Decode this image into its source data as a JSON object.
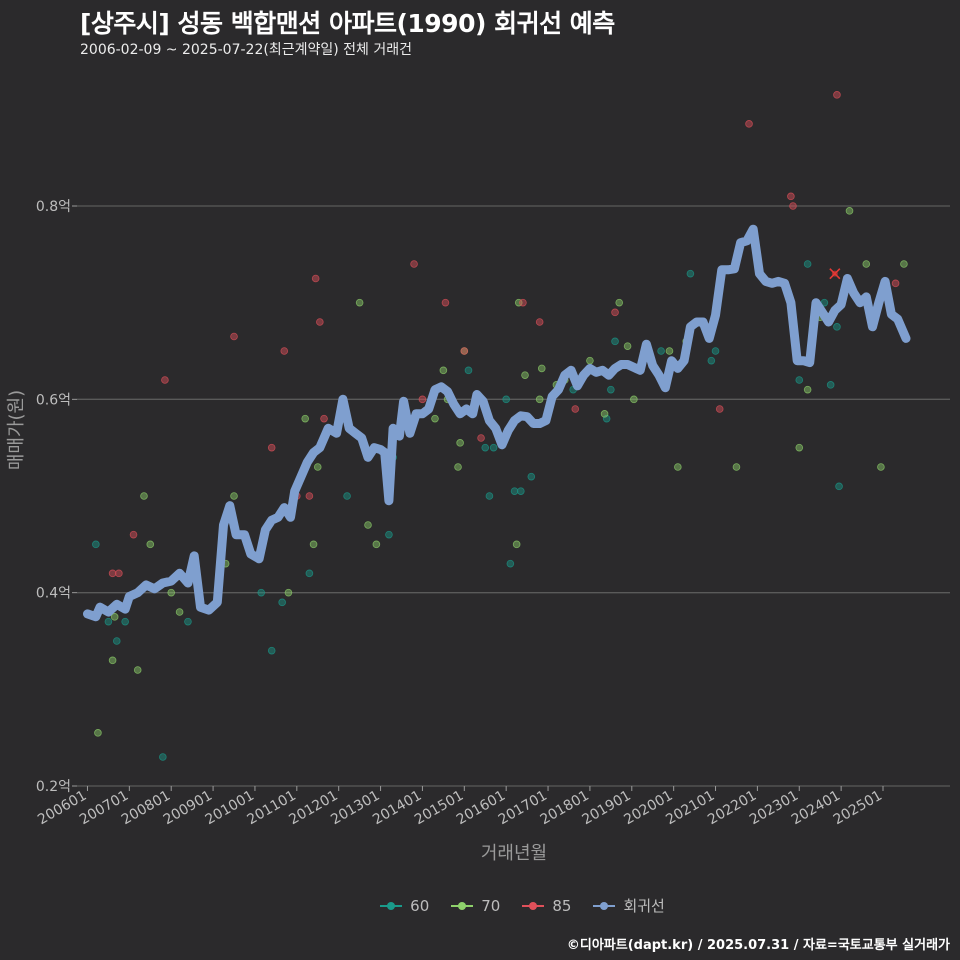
{
  "header": {
    "title": "[상주시] 성동 백합맨션 아파트(1990) 회귀선 예측",
    "subtitle": "2006-02-09 ~ 2025-07-22(최근계약일) 전체 거래건"
  },
  "footer": {
    "text": "©디아파트(dapt.kr) / 2025.07.31 / 자료=국토교통부 실거래가"
  },
  "colors": {
    "background": "#2b2a2c",
    "grid": "#5a5a5a",
    "series60": "#1a9a8a",
    "series70": "#8ed16b",
    "series85": "#e0505a",
    "regression": "#7f9fcf",
    "marker": "#e53935"
  },
  "chart_data": {
    "type": "scatter",
    "title": "[상주시] 성동 백합맨션 아파트(1990) 회귀선 예측",
    "xlabel": "거래년월",
    "ylabel": "매매가(원)",
    "x_unit": "years",
    "xlim": [
      2005.75,
      2026.6
    ],
    "ylim": [
      0.2,
      0.92
    ],
    "yticks": [
      0.2,
      0.4,
      0.6,
      0.8
    ],
    "ytick_labels": [
      "0.2억",
      "0.4억",
      "0.6억",
      "0.8억"
    ],
    "xticks": [
      2006,
      2007,
      2008,
      2009,
      2010,
      2011,
      2012,
      2013,
      2014,
      2015,
      2016,
      2017,
      2018,
      2019,
      2020,
      2021,
      2022,
      2023,
      2024,
      2025
    ],
    "xtick_labels": [
      "200601",
      "200701",
      "200801",
      "200901",
      "201001",
      "201101",
      "201201",
      "201301",
      "201401",
      "201501",
      "201601",
      "201701",
      "201801",
      "201901",
      "202001",
      "202101",
      "202201",
      "202301",
      "202401",
      "202501"
    ],
    "legend": [
      {
        "name": "60",
        "key": "series60"
      },
      {
        "name": "70",
        "key": "series70"
      },
      {
        "name": "85",
        "key": "series85"
      },
      {
        "name": "회귀선",
        "key": "regression"
      }
    ],
    "series": [
      {
        "name": "60",
        "key": "series60",
        "points": [
          [
            2006.2,
            0.45
          ],
          [
            2006.5,
            0.37
          ],
          [
            2006.7,
            0.35
          ],
          [
            2006.9,
            0.37
          ],
          [
            2007.8,
            0.23
          ],
          [
            2008.4,
            0.37
          ],
          [
            2010.15,
            0.4
          ],
          [
            2010.4,
            0.34
          ],
          [
            2010.65,
            0.39
          ],
          [
            2011.3,
            0.42
          ],
          [
            2012.2,
            0.5
          ],
          [
            2013.2,
            0.46
          ],
          [
            2013.3,
            0.54
          ],
          [
            2015.1,
            0.63
          ],
          [
            2015.5,
            0.55
          ],
          [
            2015.6,
            0.5
          ],
          [
            2015.7,
            0.55
          ],
          [
            2016.0,
            0.6
          ],
          [
            2016.1,
            0.43
          ],
          [
            2016.2,
            0.505
          ],
          [
            2016.35,
            0.505
          ],
          [
            2016.6,
            0.52
          ],
          [
            2017.6,
            0.61
          ],
          [
            2018.4,
            0.58
          ],
          [
            2018.5,
            0.61
          ],
          [
            2018.6,
            0.66
          ],
          [
            2019.7,
            0.65
          ],
          [
            2020.4,
            0.73
          ],
          [
            2020.9,
            0.64
          ],
          [
            2021.0,
            0.65
          ],
          [
            2023.0,
            0.62
          ],
          [
            2023.2,
            0.74
          ],
          [
            2023.6,
            0.7
          ],
          [
            2023.75,
            0.615
          ],
          [
            2023.9,
            0.675
          ],
          [
            2023.95,
            0.51
          ]
        ]
      },
      {
        "name": "70",
        "key": "series70",
        "points": [
          [
            2006.25,
            0.255
          ],
          [
            2006.6,
            0.33
          ],
          [
            2006.65,
            0.375
          ],
          [
            2007.2,
            0.32
          ],
          [
            2007.35,
            0.5
          ],
          [
            2007.5,
            0.45
          ],
          [
            2008.0,
            0.4
          ],
          [
            2008.2,
            0.38
          ],
          [
            2009.3,
            0.43
          ],
          [
            2009.5,
            0.5
          ],
          [
            2010.8,
            0.4
          ],
          [
            2011.2,
            0.58
          ],
          [
            2011.4,
            0.45
          ],
          [
            2011.5,
            0.53
          ],
          [
            2012.2,
            0.58
          ],
          [
            2012.5,
            0.7
          ],
          [
            2012.7,
            0.47
          ],
          [
            2012.9,
            0.45
          ],
          [
            2014.3,
            0.58
          ],
          [
            2014.5,
            0.63
          ],
          [
            2014.6,
            0.6
          ],
          [
            2014.85,
            0.53
          ],
          [
            2014.9,
            0.555
          ],
          [
            2015.0,
            0.65
          ],
          [
            2016.25,
            0.45
          ],
          [
            2016.3,
            0.7
          ],
          [
            2016.45,
            0.625
          ],
          [
            2016.8,
            0.6
          ],
          [
            2016.85,
            0.632
          ],
          [
            2017.2,
            0.615
          ],
          [
            2017.4,
            0.62
          ],
          [
            2017.7,
            0.62
          ],
          [
            2018.0,
            0.64
          ],
          [
            2018.35,
            0.585
          ],
          [
            2018.7,
            0.7
          ],
          [
            2018.9,
            0.655
          ],
          [
            2019.05,
            0.6
          ],
          [
            2019.9,
            0.65
          ],
          [
            2020.1,
            0.53
          ],
          [
            2020.3,
            0.66
          ],
          [
            2021.5,
            0.53
          ],
          [
            2023.0,
            0.55
          ],
          [
            2023.2,
            0.61
          ],
          [
            2023.5,
            0.685
          ],
          [
            2024.2,
            0.795
          ],
          [
            2024.6,
            0.74
          ],
          [
            2024.95,
            0.53
          ],
          [
            2025.5,
            0.74
          ]
        ]
      },
      {
        "name": "85",
        "key": "series85",
        "points": [
          [
            2006.6,
            0.42
          ],
          [
            2006.75,
            0.42
          ],
          [
            2007.1,
            0.46
          ],
          [
            2007.85,
            0.62
          ],
          [
            2009.5,
            0.665
          ],
          [
            2010.4,
            0.55
          ],
          [
            2010.7,
            0.65
          ],
          [
            2011.0,
            0.5
          ],
          [
            2011.3,
            0.5
          ],
          [
            2011.45,
            0.725
          ],
          [
            2011.55,
            0.68
          ],
          [
            2011.65,
            0.58
          ],
          [
            2013.8,
            0.74
          ],
          [
            2014.0,
            0.6
          ],
          [
            2014.55,
            0.7
          ],
          [
            2015.0,
            0.65
          ],
          [
            2015.4,
            0.56
          ],
          [
            2016.4,
            0.7
          ],
          [
            2016.8,
            0.68
          ],
          [
            2017.65,
            0.59
          ],
          [
            2018.6,
            0.69
          ],
          [
            2021.1,
            0.59
          ],
          [
            2021.8,
            0.885
          ],
          [
            2022.8,
            0.81
          ],
          [
            2022.85,
            0.8
          ],
          [
            2023.9,
            0.915
          ],
          [
            2025.3,
            0.72
          ]
        ]
      }
    ],
    "regression_line": [
      [
        2006.0,
        0.378
      ],
      [
        2006.2,
        0.375
      ],
      [
        2006.3,
        0.385
      ],
      [
        2006.5,
        0.38
      ],
      [
        2006.7,
        0.388
      ],
      [
        2006.9,
        0.383
      ],
      [
        2007.0,
        0.396
      ],
      [
        2007.2,
        0.4
      ],
      [
        2007.4,
        0.408
      ],
      [
        2007.6,
        0.404
      ],
      [
        2007.8,
        0.41
      ],
      [
        2008.0,
        0.412
      ],
      [
        2008.2,
        0.42
      ],
      [
        2008.4,
        0.41
      ],
      [
        2008.55,
        0.438
      ],
      [
        2008.7,
        0.385
      ],
      [
        2008.9,
        0.382
      ],
      [
        2009.1,
        0.39
      ],
      [
        2009.25,
        0.47
      ],
      [
        2009.4,
        0.49
      ],
      [
        2009.55,
        0.46
      ],
      [
        2009.75,
        0.46
      ],
      [
        2009.9,
        0.44
      ],
      [
        2010.1,
        0.435
      ],
      [
        2010.25,
        0.465
      ],
      [
        2010.4,
        0.475
      ],
      [
        2010.55,
        0.478
      ],
      [
        2010.7,
        0.488
      ],
      [
        2010.85,
        0.478
      ],
      [
        2010.95,
        0.505
      ],
      [
        2011.1,
        0.52
      ],
      [
        2011.25,
        0.535
      ],
      [
        2011.4,
        0.545
      ],
      [
        2011.55,
        0.55
      ],
      [
        2011.75,
        0.57
      ],
      [
        2011.95,
        0.565
      ],
      [
        2012.1,
        0.6
      ],
      [
        2012.25,
        0.57
      ],
      [
        2012.4,
        0.565
      ],
      [
        2012.55,
        0.56
      ],
      [
        2012.7,
        0.54
      ],
      [
        2012.85,
        0.55
      ],
      [
        2013.0,
        0.548
      ],
      [
        2013.1,
        0.545
      ],
      [
        2013.2,
        0.495
      ],
      [
        2013.3,
        0.57
      ],
      [
        2013.45,
        0.562
      ],
      [
        2013.55,
        0.598
      ],
      [
        2013.7,
        0.565
      ],
      [
        2013.85,
        0.585
      ],
      [
        2014.0,
        0.585
      ],
      [
        2014.15,
        0.59
      ],
      [
        2014.3,
        0.61
      ],
      [
        2014.45,
        0.613
      ],
      [
        2014.6,
        0.608
      ],
      [
        2014.75,
        0.595
      ],
      [
        2014.9,
        0.585
      ],
      [
        2015.05,
        0.59
      ],
      [
        2015.2,
        0.585
      ],
      [
        2015.3,
        0.605
      ],
      [
        2015.45,
        0.598
      ],
      [
        2015.6,
        0.578
      ],
      [
        2015.75,
        0.57
      ],
      [
        2015.9,
        0.553
      ],
      [
        2016.05,
        0.568
      ],
      [
        2016.2,
        0.578
      ],
      [
        2016.35,
        0.583
      ],
      [
        2016.5,
        0.582
      ],
      [
        2016.65,
        0.575
      ],
      [
        2016.8,
        0.575
      ],
      [
        2016.95,
        0.578
      ],
      [
        2017.1,
        0.603
      ],
      [
        2017.25,
        0.61
      ],
      [
        2017.4,
        0.625
      ],
      [
        2017.55,
        0.63
      ],
      [
        2017.7,
        0.614
      ],
      [
        2017.85,
        0.625
      ],
      [
        2018.0,
        0.632
      ],
      [
        2018.15,
        0.628
      ],
      [
        2018.3,
        0.63
      ],
      [
        2018.45,
        0.625
      ],
      [
        2018.6,
        0.632
      ],
      [
        2018.75,
        0.636
      ],
      [
        2018.9,
        0.636
      ],
      [
        2019.05,
        0.633
      ],
      [
        2019.2,
        0.63
      ],
      [
        2019.35,
        0.657
      ],
      [
        2019.5,
        0.635
      ],
      [
        2019.65,
        0.625
      ],
      [
        2019.8,
        0.612
      ],
      [
        2019.95,
        0.64
      ],
      [
        2020.1,
        0.632
      ],
      [
        2020.25,
        0.64
      ],
      [
        2020.4,
        0.675
      ],
      [
        2020.55,
        0.68
      ],
      [
        2020.7,
        0.68
      ],
      [
        2020.85,
        0.663
      ],
      [
        2021.0,
        0.687
      ],
      [
        2021.15,
        0.734
      ],
      [
        2021.3,
        0.734
      ],
      [
        2021.45,
        0.735
      ],
      [
        2021.6,
        0.762
      ],
      [
        2021.75,
        0.764
      ],
      [
        2021.9,
        0.776
      ],
      [
        2022.05,
        0.73
      ],
      [
        2022.2,
        0.722
      ],
      [
        2022.35,
        0.72
      ],
      [
        2022.5,
        0.722
      ],
      [
        2022.65,
        0.72
      ],
      [
        2022.8,
        0.7
      ],
      [
        2022.95,
        0.64
      ],
      [
        2023.1,
        0.64
      ],
      [
        2023.25,
        0.638
      ],
      [
        2023.4,
        0.7
      ],
      [
        2023.55,
        0.69
      ],
      [
        2023.7,
        0.68
      ],
      [
        2023.85,
        0.692
      ],
      [
        2024.0,
        0.698
      ],
      [
        2024.15,
        0.725
      ],
      [
        2024.3,
        0.71
      ],
      [
        2024.45,
        0.7
      ],
      [
        2024.6,
        0.706
      ],
      [
        2024.75,
        0.675
      ],
      [
        2024.9,
        0.7
      ],
      [
        2025.05,
        0.722
      ],
      [
        2025.2,
        0.688
      ],
      [
        2025.35,
        0.683
      ],
      [
        2025.55,
        0.663
      ]
    ],
    "highlight_marker": [
      2023.85,
      0.73
    ]
  }
}
